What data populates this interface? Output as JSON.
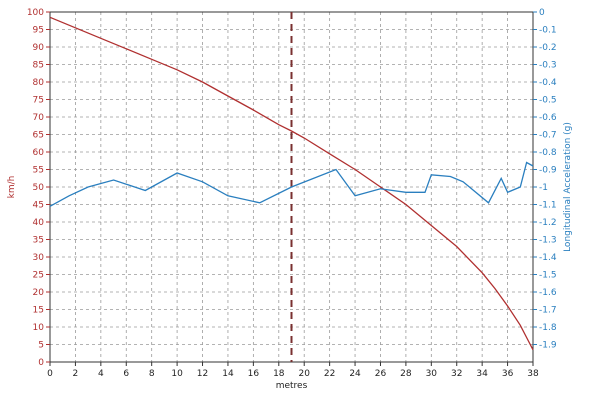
{
  "chart_data": {
    "type": "line",
    "xlabel": "metres",
    "ylabel_left": "km/h",
    "ylabel_right": "Longitudinal Acceleration (g)",
    "xlim": [
      0,
      38
    ],
    "ylim_left": [
      0,
      100
    ],
    "ylim_right": [
      -2,
      0
    ],
    "x_ticks": [
      0,
      2,
      4,
      6,
      8,
      10,
      12,
      14,
      16,
      18,
      20,
      22,
      24,
      26,
      28,
      30,
      32,
      34,
      36,
      38
    ],
    "y_ticks_left": [
      0,
      5,
      10,
      15,
      20,
      25,
      30,
      35,
      40,
      45,
      50,
      55,
      60,
      65,
      70,
      75,
      80,
      85,
      90,
      95,
      100
    ],
    "y_ticks_right": [
      0,
      -0.1,
      -0.2,
      -0.3,
      -0.4,
      -0.5,
      -0.6,
      -0.7,
      -0.8,
      -0.9,
      -1,
      -1.1,
      -1.2,
      -1.3,
      -1.4,
      -1.5,
      -1.6,
      -1.7,
      -1.8,
      -1.9
    ],
    "grid": true,
    "marker_line_x": 19,
    "series": [
      {
        "axis": "left",
        "color": "#b03030",
        "x": [
          0,
          2,
          4,
          6,
          8,
          10,
          12,
          14,
          16,
          18,
          19,
          20,
          22,
          24,
          26,
          28,
          30,
          32,
          34,
          35,
          36,
          37,
          37.5,
          38
        ],
        "y": [
          98.5,
          95.5,
          92.5,
          89.5,
          86.5,
          83.5,
          80,
          76,
          72,
          67.8,
          66,
          64,
          59.5,
          55,
          50,
          45,
          39,
          33,
          25.5,
          21,
          16,
          10.5,
          7,
          3.5
        ]
      },
      {
        "axis": "right",
        "color": "#2a7fbf",
        "x": [
          0,
          1.5,
          3,
          5,
          7.5,
          10,
          12,
          14,
          16.5,
          19,
          22.5,
          24,
          26,
          28,
          29.5,
          30,
          31.5,
          32.5,
          34.5,
          35.5,
          36,
          37,
          37.5,
          38
        ],
        "y": [
          -1.11,
          -1.05,
          -1,
          -0.96,
          -1.02,
          -0.92,
          -0.97,
          -1.05,
          -1.09,
          -1,
          -0.9,
          -1.05,
          -1.01,
          -1.03,
          -1.03,
          -0.93,
          -0.94,
          -0.97,
          -1.09,
          -0.95,
          -1.03,
          -1,
          -0.86,
          -0.88
        ]
      }
    ]
  }
}
